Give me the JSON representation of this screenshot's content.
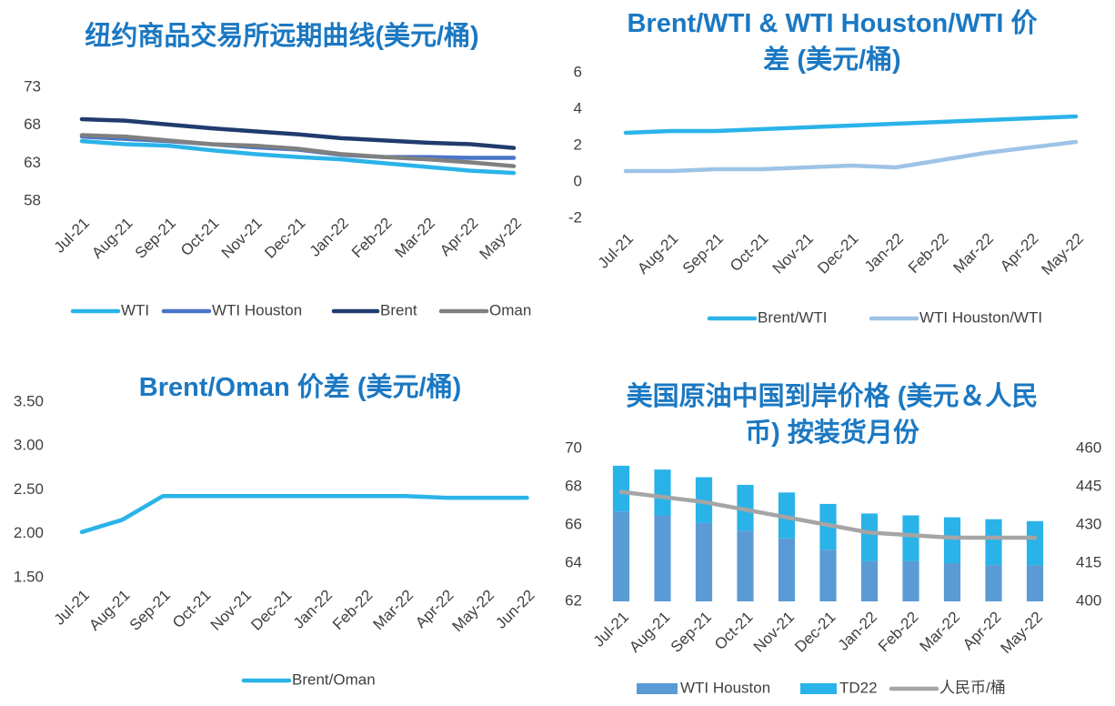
{
  "chart_data": [
    {
      "type": "line",
      "title": "纽约商品交易所远期曲线(美元/桶)",
      "categories": [
        "Jul-21",
        "Aug-21",
        "Sep-21",
        "Oct-21",
        "Nov-21",
        "Dec-21",
        "Jan-22",
        "Feb-22",
        "Mar-22",
        "Apr-22",
        "May-22"
      ],
      "series": [
        {
          "name": "WTI",
          "color": "#2ab3e8",
          "values": [
            65.9,
            65.5,
            65.3,
            64.7,
            64.2,
            63.8,
            63.5,
            63.0,
            62.5,
            62.0,
            61.7
          ]
        },
        {
          "name": "WTI Houston",
          "color": "#4a74c9",
          "values": [
            66.5,
            66.2,
            65.9,
            65.5,
            65.1,
            64.8,
            64.1,
            63.8,
            63.8,
            63.7,
            63.7
          ]
        },
        {
          "name": "Brent",
          "color": "#203b6e",
          "values": [
            68.8,
            68.6,
            68.1,
            67.6,
            67.2,
            66.8,
            66.3,
            66.0,
            65.7,
            65.5,
            65.0
          ]
        },
        {
          "name": "Oman",
          "color": "#808080",
          "values": [
            66.7,
            66.5,
            66.0,
            65.5,
            65.3,
            64.9,
            64.2,
            63.8,
            63.5,
            63.1,
            62.6
          ]
        }
      ],
      "ylim": [
        58,
        73
      ],
      "yticks": [
        58,
        63,
        68,
        73
      ]
    },
    {
      "type": "line",
      "title": "Brent/WTI & WTI Houston/WTI 价差 (美元/桶)",
      "categories": [
        "Jul-21",
        "Aug-21",
        "Sep-21",
        "Oct-21",
        "Nov-21",
        "Dec-21",
        "Jan-22",
        "Feb-22",
        "Mar-22",
        "Apr-22",
        "May-22"
      ],
      "series": [
        {
          "name": "Brent/WTI",
          "color": "#2ab3e8",
          "values": [
            2.7,
            2.8,
            2.8,
            2.9,
            3.0,
            3.1,
            3.2,
            3.3,
            3.4,
            3.5,
            3.6
          ]
        },
        {
          "name": "WTI Houston/WTI",
          "color": "#9dc3e6",
          "values": [
            0.6,
            0.6,
            0.7,
            0.7,
            0.8,
            0.9,
            0.8,
            1.2,
            1.6,
            1.9,
            2.2
          ]
        }
      ],
      "ylim": [
        -2,
        6
      ],
      "yticks": [
        -2,
        0,
        2,
        4,
        6
      ]
    },
    {
      "type": "line",
      "title": "Brent/Oman 价差 (美元/桶)",
      "categories": [
        "Jul-21",
        "Aug-21",
        "Sep-21",
        "Oct-21",
        "Nov-21",
        "Dec-21",
        "Jan-22",
        "Feb-22",
        "Mar-22",
        "Apr-22",
        "May-22",
        "Jun-22"
      ],
      "series": [
        {
          "name": "Brent/Oman",
          "color": "#2ab3e8",
          "values": [
            2.02,
            2.16,
            2.43,
            2.43,
            2.43,
            2.43,
            2.43,
            2.43,
            2.43,
            2.41,
            2.41,
            2.41
          ]
        }
      ],
      "ylim": [
        1.5,
        3.5
      ],
      "yticks": [
        {
          "value": 1.5,
          "label": "1.50"
        },
        {
          "value": 2,
          "label": "2.00"
        },
        {
          "value": 2.5,
          "label": "2.50"
        },
        {
          "value": 3,
          "label": "3.00"
        },
        {
          "value": 3.5,
          "label": "3.50"
        }
      ]
    },
    {
      "type": "bar",
      "stacked": true,
      "title": "美国原油中国到岸价格 (美元＆人民币) 按装货月份",
      "categories": [
        "Jul-21",
        "Aug-21",
        "Sep-21",
        "Oct-21",
        "Nov-21",
        "Dec-21",
        "Jan-22",
        "Feb-22",
        "Mar-22",
        "Apr-22",
        "May-22"
      ],
      "series": [
        {
          "name": "WTI Houston",
          "color": "#5b9bd5",
          "values": [
            66.7,
            66.5,
            66.1,
            65.7,
            65.3,
            64.7,
            64.1,
            64.1,
            64.0,
            63.9,
            63.9
          ]
        },
        {
          "name": "TD22",
          "color": "#2ab3e8",
          "values": [
            2.4,
            2.4,
            2.4,
            2.4,
            2.4,
            2.4,
            2.5,
            2.4,
            2.4,
            2.4,
            2.3
          ]
        },
        {
          "name": "人民币/桶",
          "color": "#a5a5a5",
          "type": "line",
          "axis": "y2",
          "values": [
            443,
            441,
            439,
            436,
            433,
            430,
            427,
            426,
            425,
            425,
            425
          ]
        }
      ],
      "ylim": [
        62,
        70
      ],
      "yticks": [
        62,
        64,
        66,
        68,
        70
      ],
      "y2lim": [
        400,
        460
      ],
      "y2ticks": [
        400,
        415,
        430,
        445,
        460
      ]
    }
  ]
}
